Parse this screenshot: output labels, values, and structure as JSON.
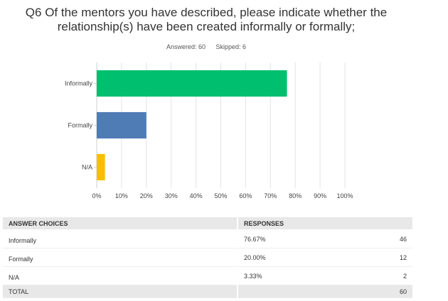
{
  "question": {
    "line1": "Q6 Of the mentors you have described, please indicate whether the",
    "line2": "relationship(s) have been created informally or formally;"
  },
  "meta": {
    "answered": "Answered: 60",
    "skipped": "Skipped: 6"
  },
  "chart_data": {
    "type": "bar",
    "orientation": "horizontal",
    "categories": [
      "Informally",
      "Formally",
      "N/A"
    ],
    "values": [
      76.67,
      20.0,
      3.33
    ],
    "colors": [
      "#00bf6f",
      "#507cb6",
      "#f9be00"
    ],
    "xlim": [
      0,
      100
    ],
    "x_ticks": [
      0,
      10,
      20,
      30,
      40,
      50,
      60,
      70,
      80,
      90,
      100
    ],
    "x_tick_labels": [
      "0%",
      "10%",
      "20%",
      "30%",
      "40%",
      "50%",
      "60%",
      "70%",
      "80%",
      "90%",
      "100%"
    ],
    "grid": true
  },
  "table": {
    "headers": [
      "ANSWER CHOICES",
      "RESPONSES"
    ],
    "rows": [
      {
        "choice": "Informally",
        "percent": "76.67%",
        "count": "46"
      },
      {
        "choice": "Formally",
        "percent": "20.00%",
        "count": "12"
      },
      {
        "choice": "N/A",
        "percent": "3.33%",
        "count": "2"
      }
    ],
    "total": {
      "label": "TOTAL",
      "count": "60"
    }
  }
}
